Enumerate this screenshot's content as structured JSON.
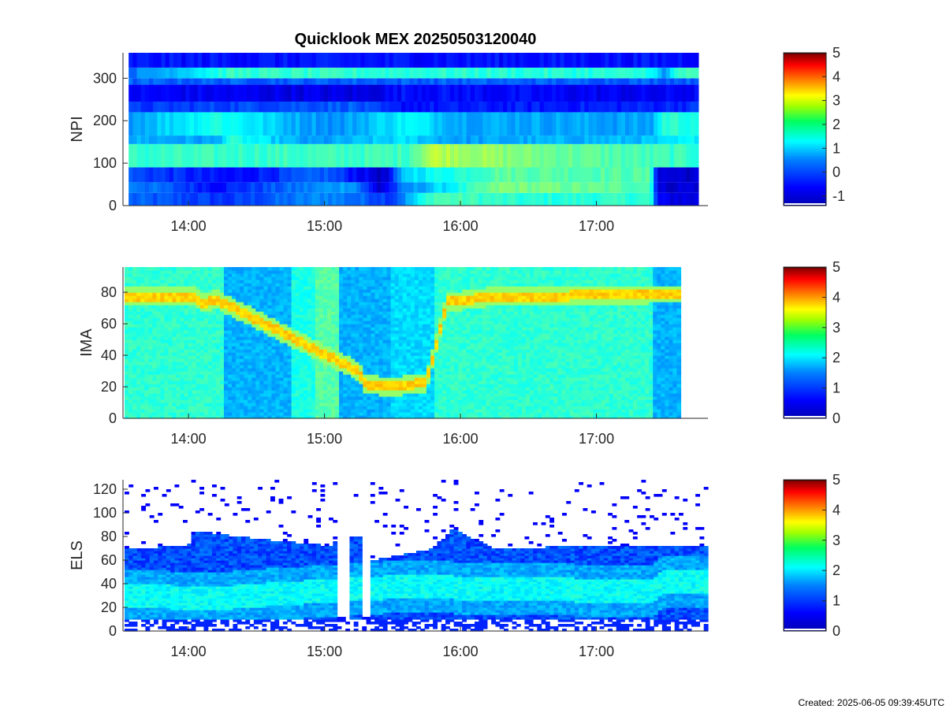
{
  "title": "Quicklook MEX 20250503120040",
  "created": "Created: 2025-06-05 09:39:45UTC",
  "chart_data": [
    {
      "type": "heatmap",
      "ylabel": "NPI",
      "x_ticks": [
        "14:00",
        "15:00",
        "16:00",
        "17:00"
      ],
      "x_tick_hours": [
        14,
        15,
        16,
        17
      ],
      "xlim_hours": [
        13.53,
        17.82
      ],
      "data_xlim_hours": [
        13.56,
        17.75
      ],
      "yticks": [
        0,
        100,
        200,
        300
      ],
      "ylim": [
        0,
        360
      ],
      "colorbar": {
        "ticks": [
          -1,
          0,
          1,
          2,
          3,
          4,
          5
        ],
        "range": [
          -1.4,
          5
        ]
      },
      "bands": [
        {
          "y": [
            0,
            30
          ],
          "values": [
            {
              "t": 13.56,
              "v": 0.0
            },
            {
              "t": 14.3,
              "v": -0.3
            },
            {
              "t": 15.0,
              "v": 0.3
            },
            {
              "t": 15.5,
              "v": -0.2
            },
            {
              "t": 15.8,
              "v": 1.5
            },
            {
              "t": 16.5,
              "v": 1.2
            },
            {
              "t": 17.4,
              "v": 1.3
            },
            {
              "t": 17.45,
              "v": -0.7
            },
            {
              "t": 17.75,
              "v": -0.8
            }
          ]
        },
        {
          "y": [
            30,
            55
          ],
          "values": [
            {
              "t": 13.56,
              "v": 0.3
            },
            {
              "t": 14.2,
              "v": -0.5
            },
            {
              "t": 15.2,
              "v": 0.5
            },
            {
              "t": 15.4,
              "v": -0.9
            },
            {
              "t": 15.6,
              "v": 0.2
            },
            {
              "t": 16.3,
              "v": 1.8
            },
            {
              "t": 17.4,
              "v": 1.5
            },
            {
              "t": 17.45,
              "v": -0.9
            },
            {
              "t": 17.75,
              "v": -0.8
            }
          ]
        },
        {
          "y": [
            55,
            90
          ],
          "values": [
            {
              "t": 13.56,
              "v": -0.1
            },
            {
              "t": 14.3,
              "v": -0.6
            },
            {
              "t": 15.0,
              "v": 0.0
            },
            {
              "t": 15.45,
              "v": -1.0
            },
            {
              "t": 15.6,
              "v": 0.8
            },
            {
              "t": 16.3,
              "v": 1.6
            },
            {
              "t": 17.4,
              "v": 1.5
            },
            {
              "t": 17.45,
              "v": -0.8
            },
            {
              "t": 17.75,
              "v": -0.9
            }
          ]
        },
        {
          "y": [
            90,
            145
          ],
          "values": [
            {
              "t": 13.56,
              "v": 1.3
            },
            {
              "t": 15.6,
              "v": 1.4
            },
            {
              "t": 15.8,
              "v": 2.2
            },
            {
              "t": 16.4,
              "v": 1.8
            },
            {
              "t": 17.4,
              "v": 1.4
            },
            {
              "t": 17.75,
              "v": 1.3
            }
          ]
        },
        {
          "y": [
            145,
            165
          ],
          "values": [
            {
              "t": 13.56,
              "v": 0.5
            },
            {
              "t": 14.2,
              "v": 0.4
            },
            {
              "t": 14.3,
              "v": 1.2
            },
            {
              "t": 14.9,
              "v": 0.3
            },
            {
              "t": 15.6,
              "v": 0.8
            },
            {
              "t": 16.0,
              "v": 0.4
            },
            {
              "t": 17.4,
              "v": 0.6
            },
            {
              "t": 17.75,
              "v": 1.0
            }
          ]
        },
        {
          "y": [
            165,
            220
          ],
          "values": [
            {
              "t": 13.56,
              "v": 0.4
            },
            {
              "t": 14.2,
              "v": 1.2
            },
            {
              "t": 14.8,
              "v": 0.5
            },
            {
              "t": 15.1,
              "v": 0.3
            },
            {
              "t": 15.6,
              "v": 1.0
            },
            {
              "t": 16.0,
              "v": 0.5
            },
            {
              "t": 17.4,
              "v": 0.4
            },
            {
              "t": 17.5,
              "v": 1.3
            },
            {
              "t": 17.75,
              "v": 1.2
            }
          ]
        },
        {
          "y": [
            220,
            245
          ],
          "values": [
            {
              "t": 13.56,
              "v": -0.3
            },
            {
              "t": 15.2,
              "v": 0.0
            },
            {
              "t": 15.5,
              "v": -0.5
            },
            {
              "t": 17.4,
              "v": -0.4
            },
            {
              "t": 17.75,
              "v": -0.3
            }
          ]
        },
        {
          "y": [
            245,
            285
          ],
          "values": [
            {
              "t": 13.56,
              "v": -0.6
            },
            {
              "t": 15.3,
              "v": -0.8
            },
            {
              "t": 15.6,
              "v": -0.5
            },
            {
              "t": 17.4,
              "v": -0.7
            },
            {
              "t": 17.75,
              "v": -0.6
            }
          ]
        },
        {
          "y": [
            285,
            300
          ],
          "values": [
            {
              "t": 13.56,
              "v": 0.0
            },
            {
              "t": 17.75,
              "v": 0.0
            }
          ]
        },
        {
          "y": [
            300,
            325
          ],
          "values": [
            {
              "t": 13.56,
              "v": 0.1
            },
            {
              "t": 14.3,
              "v": 1.3
            },
            {
              "t": 17.4,
              "v": 1.2
            },
            {
              "t": 17.5,
              "v": 0.2
            },
            {
              "t": 17.6,
              "v": 1.4
            },
            {
              "t": 17.75,
              "v": 1.3
            }
          ]
        },
        {
          "y": [
            325,
            360
          ],
          "values": [
            {
              "t": 13.56,
              "v": -0.5
            },
            {
              "t": 17.75,
              "v": -0.5
            }
          ]
        }
      ]
    },
    {
      "type": "heatmap",
      "ylabel": "IMA",
      "x_ticks": [
        "14:00",
        "15:00",
        "16:00",
        "17:00"
      ],
      "x_tick_hours": [
        14,
        15,
        16,
        17
      ],
      "xlim_hours": [
        13.53,
        17.82
      ],
      "data_xlim_hours": [
        13.53,
        17.62
      ],
      "yticks": [
        0,
        20,
        40,
        60,
        80
      ],
      "ylim": [
        0,
        96
      ],
      "colorbar": {
        "ticks": [
          0,
          1,
          2,
          3,
          4,
          5
        ],
        "range": [
          0,
          5
        ]
      },
      "background": [
        {
          "t": [
            13.53,
            14.27
          ],
          "v": 2.1
        },
        {
          "t": [
            14.27,
            14.75
          ],
          "v": 1.5
        },
        {
          "t": [
            14.75,
            14.93
          ],
          "v": 2.0
        },
        {
          "t": [
            14.93,
            15.12
          ],
          "v": 2.3
        },
        {
          "t": [
            15.12,
            15.5
          ],
          "v": 1.5
        },
        {
          "t": [
            15.5,
            15.82
          ],
          "v": 1.7
        },
        {
          "t": [
            15.82,
            17.42
          ],
          "v": 2.1
        },
        {
          "t": [
            17.42,
            17.62
          ],
          "v": 1.5
        }
      ],
      "ridge": [
        {
          "t": 13.53,
          "e": 78
        },
        {
          "t": 14.05,
          "e": 77
        },
        {
          "t": 14.1,
          "e": 73
        },
        {
          "t": 14.2,
          "e": 76
        },
        {
          "t": 15.25,
          "e": 30
        },
        {
          "t": 15.3,
          "e": 22
        },
        {
          "t": 15.5,
          "e": 20
        },
        {
          "t": 15.75,
          "e": 23
        },
        {
          "t": 15.9,
          "e": 74
        },
        {
          "t": 16.2,
          "e": 77
        },
        {
          "t": 16.8,
          "e": 78
        },
        {
          "t": 17.4,
          "e": 79
        }
      ]
    },
    {
      "type": "heatmap",
      "ylabel": "ELS",
      "x_ticks": [
        "14:00",
        "15:00",
        "16:00",
        "17:00"
      ],
      "x_tick_hours": [
        14,
        15,
        16,
        17
      ],
      "xlim_hours": [
        13.53,
        17.82
      ],
      "data_xlim_hours": [
        13.53,
        17.82
      ],
      "yticks": [
        0,
        20,
        40,
        60,
        80,
        100,
        120
      ],
      "ylim": [
        0,
        128
      ],
      "colorbar": {
        "ticks": [
          0,
          1,
          2,
          3,
          4,
          5
        ],
        "range": [
          0,
          5
        ]
      },
      "upper_edge": [
        {
          "t": 13.53,
          "e": 70
        },
        {
          "t": 14.0,
          "e": 72
        },
        {
          "t": 14.05,
          "e": 85
        },
        {
          "t": 14.5,
          "e": 78
        },
        {
          "t": 15.05,
          "e": 72
        },
        {
          "t": 15.1,
          "e": 78
        },
        {
          "t": 15.28,
          "e": 80
        },
        {
          "t": 15.35,
          "e": 60
        },
        {
          "t": 15.8,
          "e": 70
        },
        {
          "t": 15.95,
          "e": 88
        },
        {
          "t": 16.1,
          "e": 78
        },
        {
          "t": 16.25,
          "e": 70
        },
        {
          "t": 17.0,
          "e": 72
        },
        {
          "t": 17.82,
          "e": 72
        }
      ],
      "core_band": [
        {
          "t": 13.53,
          "e": 30
        },
        {
          "t": 14.2,
          "e": 28
        },
        {
          "t": 15.1,
          "e": 35
        },
        {
          "t": 15.6,
          "e": 38
        },
        {
          "t": 16.3,
          "e": 36
        },
        {
          "t": 17.4,
          "e": 34
        },
        {
          "t": 17.5,
          "e": 42
        },
        {
          "t": 17.82,
          "e": 42
        }
      ],
      "gaps": [
        {
          "t": [
            15.1,
            15.17
          ]
        },
        {
          "t": [
            15.27,
            15.33
          ]
        }
      ]
    }
  ]
}
